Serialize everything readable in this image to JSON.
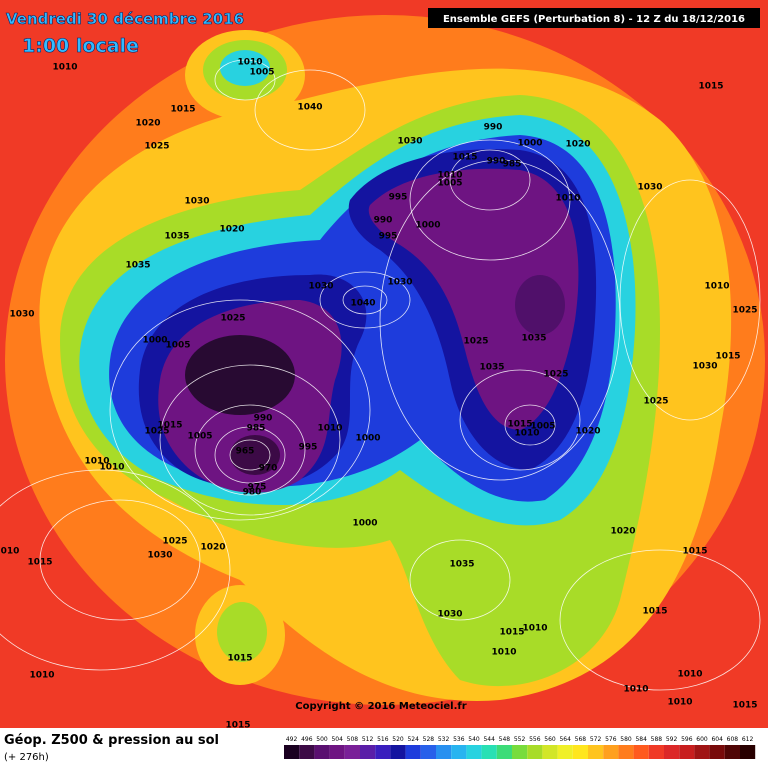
{
  "header": {
    "date": "Vendredi 30 décembre 2016",
    "local_time": "1:00 locale",
    "model": "Ensemble GEFS  (Perturbation 8)  -  12 Z du 18/12/2016"
  },
  "map": {
    "pressure_labels": [
      "1010",
      "1010",
      "1005",
      "1015",
      "1040",
      "1020",
      "1025",
      "1030",
      "990",
      "1000",
      "1015",
      "990",
      "985",
      "1020",
      "1010",
      "1005",
      "1030",
      "1020",
      "1035",
      "995",
      "990",
      "995",
      "1000",
      "1010",
      "1030",
      "1015",
      "1035",
      "1030",
      "1040",
      "1030",
      "1025",
      "1000",
      "1005",
      "1025",
      "1035",
      "1035",
      "1025",
      "1010",
      "1025",
      "1030",
      "1015",
      "1030",
      "1025",
      "1025",
      "1015",
      "1005",
      "990",
      "985",
      "965",
      "970",
      "975",
      "980",
      "995",
      "1010",
      "1000",
      "1015",
      "1005",
      "1010",
      "1020",
      "1010",
      "1010",
      "1000",
      "1020",
      "1035",
      "1025",
      "1020",
      "1030",
      "010",
      "1015",
      "1015",
      "1030",
      "1015",
      "1015",
      "1010",
      "1010",
      "1015",
      "1010",
      "1010",
      "1010",
      "1015",
      "1010",
      "1015"
    ]
  },
  "footer": {
    "copyright": "Copyright © 2016 Meteociel.fr",
    "field": "Géop. Z500 & pression au sol",
    "lead": "(+ 276h)",
    "scale": [
      492,
      496,
      500,
      504,
      508,
      512,
      516,
      520,
      524,
      528,
      532,
      536,
      540,
      544,
      548,
      552,
      556,
      560,
      564,
      568,
      572,
      576,
      580,
      584,
      588,
      592,
      596,
      600,
      604,
      608,
      612
    ]
  }
}
